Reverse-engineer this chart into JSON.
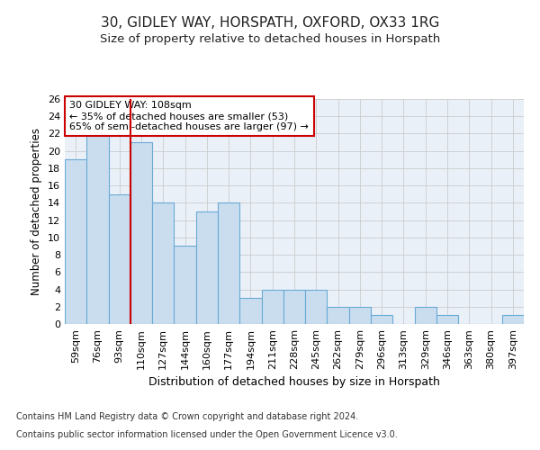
{
  "title_line1": "30, GIDLEY WAY, HORSPATH, OXFORD, OX33 1RG",
  "title_line2": "Size of property relative to detached houses in Horspath",
  "xlabel": "Distribution of detached houses by size in Horspath",
  "ylabel": "Number of detached properties",
  "categories": [
    "59sqm",
    "76sqm",
    "93sqm",
    "110sqm",
    "127sqm",
    "144sqm",
    "160sqm",
    "177sqm",
    "194sqm",
    "211sqm",
    "228sqm",
    "245sqm",
    "262sqm",
    "279sqm",
    "296sqm",
    "313sqm",
    "329sqm",
    "346sqm",
    "363sqm",
    "380sqm",
    "397sqm"
  ],
  "values": [
    19,
    22,
    15,
    21,
    14,
    9,
    13,
    14,
    3,
    4,
    4,
    4,
    2,
    2,
    1,
    0,
    2,
    1,
    0,
    0,
    1
  ],
  "bar_color": "#c9ddef",
  "bar_edge_color": "#6aaad4",
  "highlight_line_index": 3,
  "highlight_color": "#cc0000",
  "annotation_text": "30 GIDLEY WAY: 108sqm\n← 35% of detached houses are smaller (53)\n65% of semi-detached houses are larger (97) →",
  "annotation_box_facecolor": "#ffffff",
  "annotation_box_edgecolor": "#cc0000",
  "ylim": [
    0,
    26
  ],
  "yticks": [
    0,
    2,
    4,
    6,
    8,
    10,
    12,
    14,
    16,
    18,
    20,
    22,
    24,
    26
  ],
  "grid_color": "#cccccc",
  "background_color": "#eaf0f8",
  "footer_line1": "Contains HM Land Registry data © Crown copyright and database right 2024.",
  "footer_line2": "Contains public sector information licensed under the Open Government Licence v3.0.",
  "title_fontsize": 11,
  "subtitle_fontsize": 9.5,
  "ylabel_fontsize": 8.5,
  "xlabel_fontsize": 9,
  "tick_fontsize": 8,
  "annotation_fontsize": 8,
  "footer_fontsize": 7
}
